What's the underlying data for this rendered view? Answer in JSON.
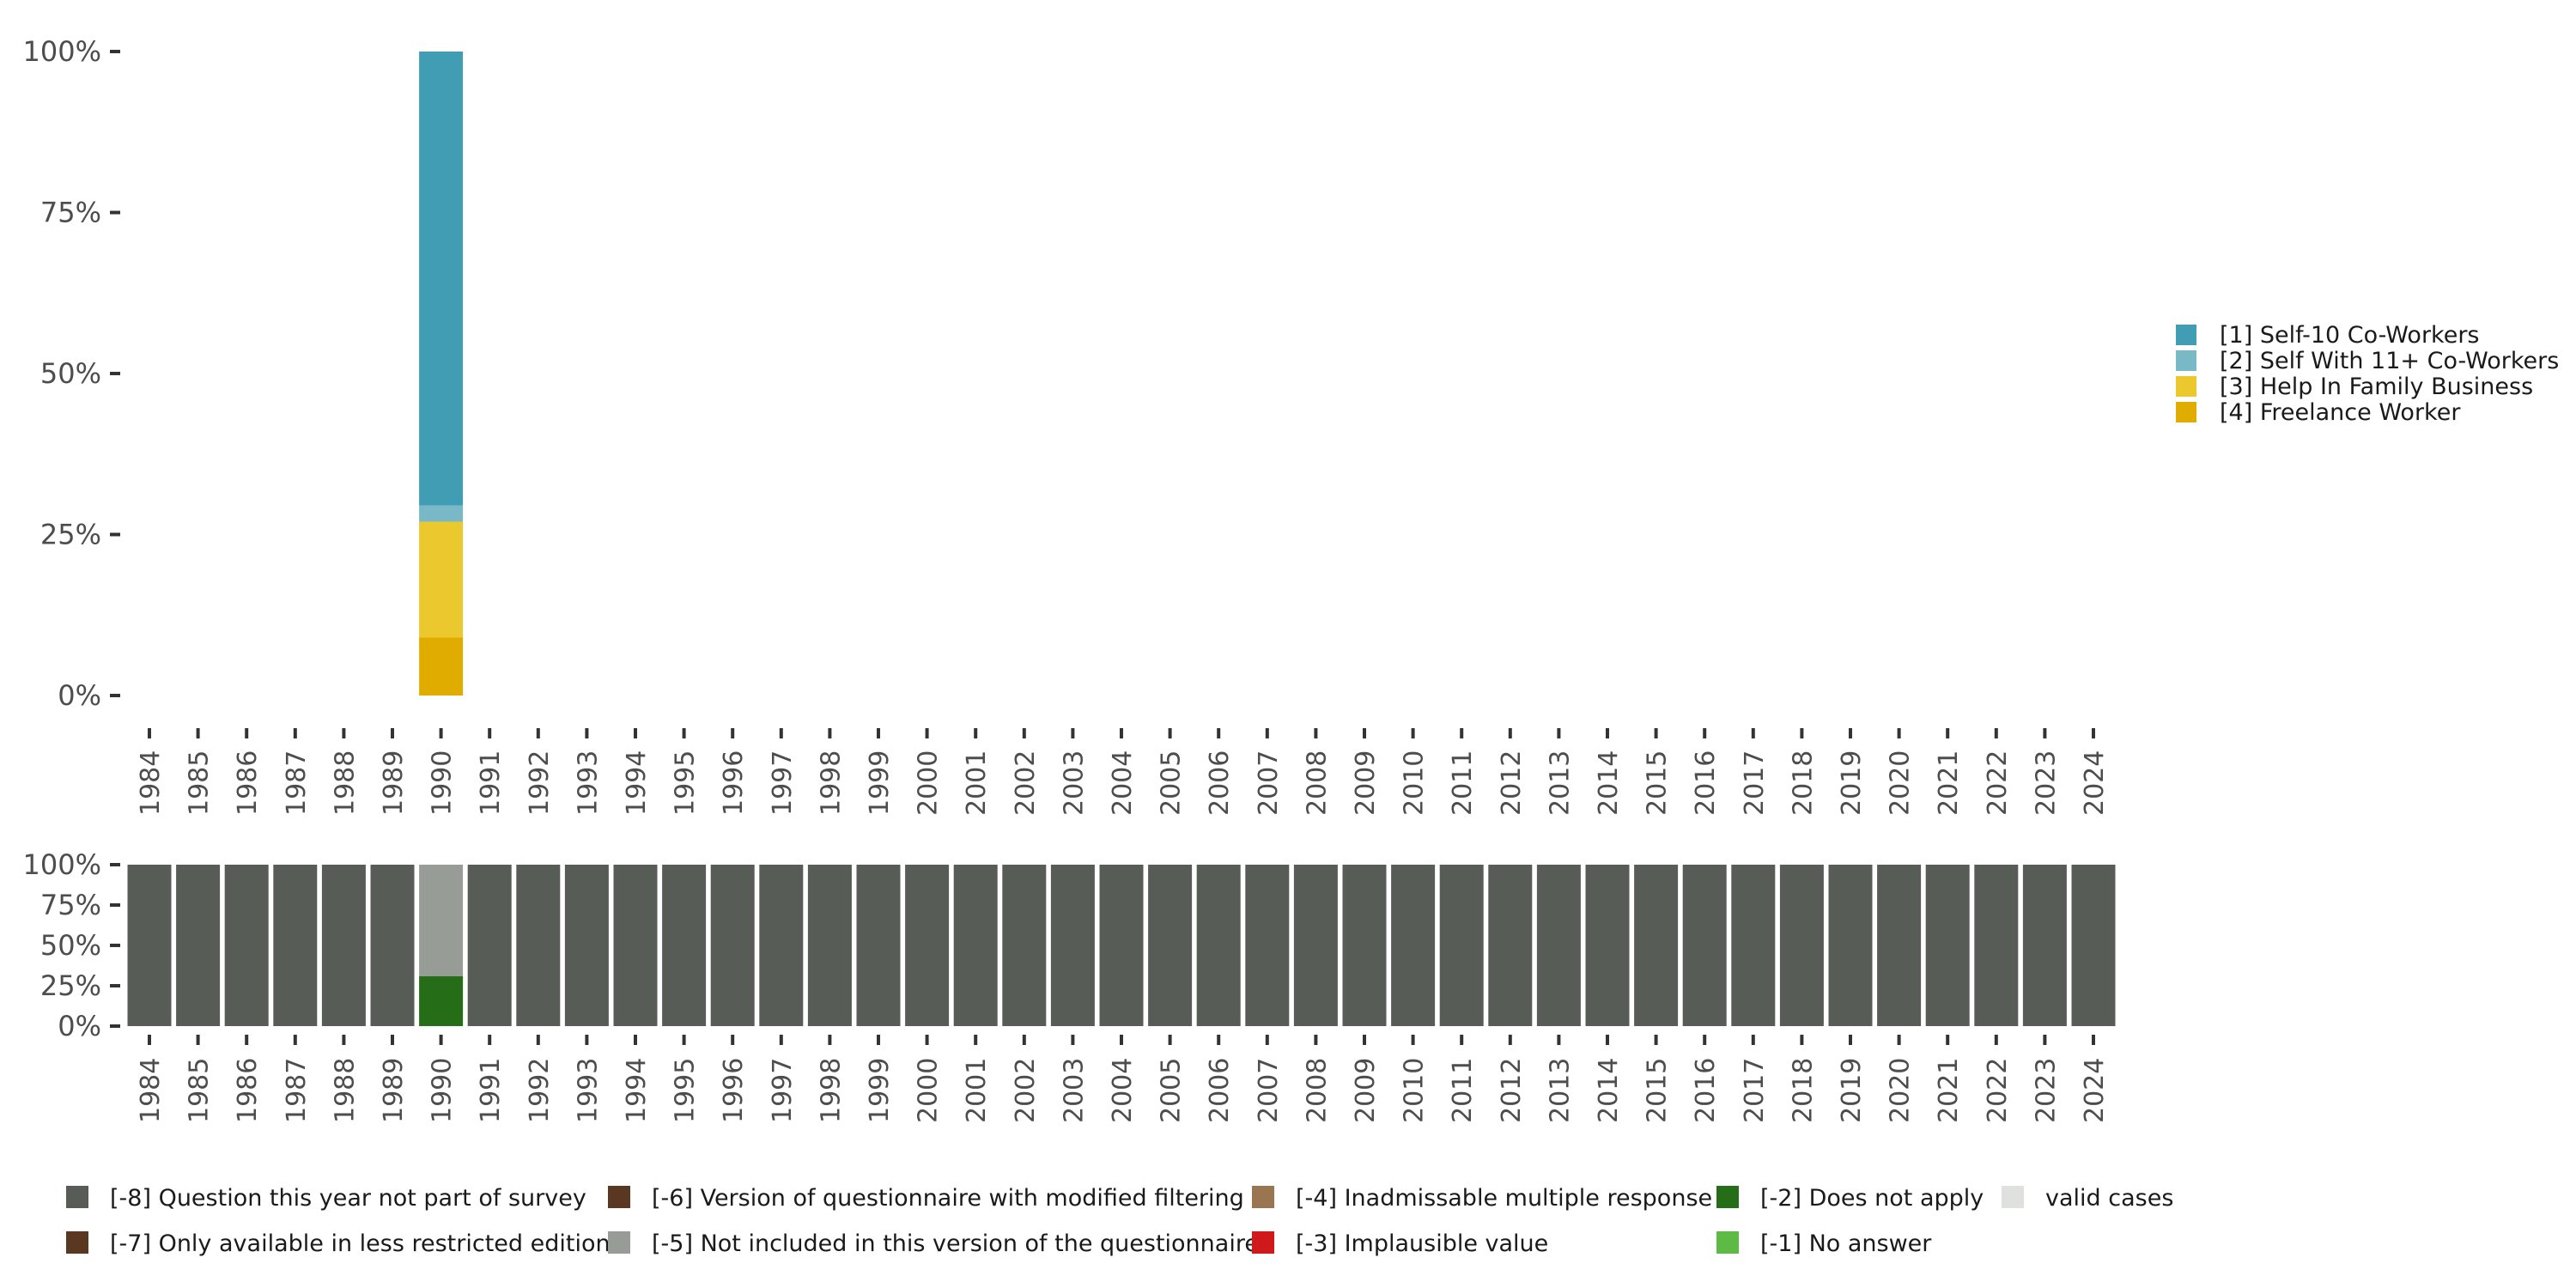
{
  "chart_data": [
    {
      "type": "bar",
      "stacked": true,
      "y_unit": "percent",
      "ylim": [
        0,
        100
      ],
      "y_ticks": [
        "0%",
        "25%",
        "50%",
        "75%",
        "100%"
      ],
      "categories": [
        "1984",
        "1985",
        "1986",
        "1987",
        "1988",
        "1989",
        "1990",
        "1991",
        "1992",
        "1993",
        "1994",
        "1995",
        "1996",
        "1997",
        "1998",
        "1999",
        "2000",
        "2001",
        "2002",
        "2003",
        "2004",
        "2005",
        "2006",
        "2007",
        "2008",
        "2009",
        "2010",
        "2011",
        "2012",
        "2013",
        "2014",
        "2015",
        "2016",
        "2017",
        "2018",
        "2019",
        "2020",
        "2021",
        "2022",
        "2023",
        "2024"
      ],
      "series": [
        {
          "name": "[4] Freelance Worker",
          "color": "#E0AC00",
          "values": {
            "1990": 9
          }
        },
        {
          "name": "[3] Help In Family Business",
          "color": "#EBC82E",
          "values": {
            "1990": 18
          }
        },
        {
          "name": "[2] Self With 11+ Co-Workers",
          "color": "#79B8C6",
          "values": {
            "1990": 2.5
          }
        },
        {
          "name": "[1] Self-10 Co-Workers",
          "color": "#419DB4",
          "values": {
            "1990": 70.5
          }
        }
      ],
      "legend": {
        "position": "right",
        "order": [
          "[1] Self-10 Co-Workers",
          "[2] Self With 11+ Co-Workers",
          "[3] Help In Family Business",
          "[4] Freelance Worker"
        ]
      },
      "grid": false
    },
    {
      "type": "bar",
      "stacked": true,
      "y_unit": "percent",
      "ylim": [
        0,
        100
      ],
      "y_ticks": [
        "0%",
        "25%",
        "50%",
        "75%",
        "100%"
      ],
      "categories": [
        "1984",
        "1985",
        "1986",
        "1987",
        "1988",
        "1989",
        "1990",
        "1991",
        "1992",
        "1993",
        "1994",
        "1995",
        "1996",
        "1997",
        "1998",
        "1999",
        "2000",
        "2001",
        "2002",
        "2003",
        "2004",
        "2005",
        "2006",
        "2007",
        "2008",
        "2009",
        "2010",
        "2011",
        "2012",
        "2013",
        "2014",
        "2015",
        "2016",
        "2017",
        "2018",
        "2019",
        "2020",
        "2021",
        "2022",
        "2023",
        "2024"
      ],
      "default_segment": {
        "name": "[-8] Question this year not part of survey",
        "value": 100
      },
      "special": {
        "1990": [
          {
            "name": "[-2] Does not apply",
            "value": 31
          },
          {
            "name": "[-5] Not included in this version of the questionnaire",
            "value": 69
          }
        ]
      },
      "legend": {
        "position": "bottom",
        "columns": 5,
        "items": [
          {
            "name": "[-8] Question this year not part of survey",
            "color": "#575C57"
          },
          {
            "name": "[-7] Only available in less restricted edition",
            "color": "#5A3720"
          },
          {
            "name": "[-6] Version of questionnaire with modified filtering",
            "color": "#5A3720"
          },
          {
            "name": "[-5] Not included in this version of the questionnaire",
            "color": "#979C97"
          },
          {
            "name": "[-4] Inadmissable multiple response",
            "color": "#9A7551"
          },
          {
            "name": "[-3] Implausible value",
            "color": "#D0191C"
          },
          {
            "name": "[-2] Does not apply",
            "color": "#256D16"
          },
          {
            "name": "[-1] No answer",
            "color": "#5DBB45"
          },
          {
            "name": "valid cases",
            "color": "#DEE1DE"
          }
        ]
      },
      "grid": false
    }
  ]
}
